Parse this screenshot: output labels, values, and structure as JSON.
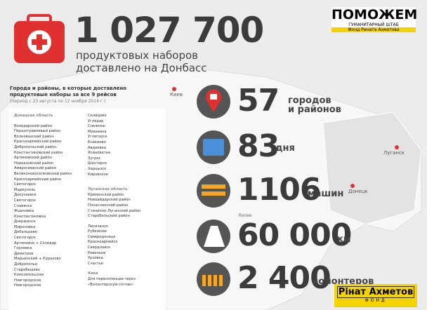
{
  "header": {
    "count": "1 027 700",
    "caption": [
      "продуктовых наборов",
      "доставлено на Донбасс"
    ]
  },
  "logo": {
    "name": "ПОМОЖЕМ",
    "subtitle": "ГУМАНИТАРНЫЙ ШТАБ",
    "fund": "Фонд Рината Ахметова"
  },
  "list": {
    "title": [
      "Города и районы, в которые доставлено",
      "продуктовые наборы за все 9 рейсов"
    ],
    "period": "(период с 23 августа по 12 ноября 2014 г.)",
    "donetsk": {
      "heading": "Донецкая область",
      "items": [
        "Володарский район",
        "Першотравневый район",
        "Волновахский район",
        "Красноармейский район",
        "Добропольский район",
        "Константиновский район",
        "Артемовский район",
        "Новоазовский район",
        "Амвросиевский район",
        "Великоновоселковский район",
        "Красноармейский район",
        "Святогорск",
        "Мариуполь",
        "Докучаевск",
        "Святогорск",
        "Славянск",
        "Ждановка",
        "Константиновка",
        "Дзержинск",
        "Мироновка",
        "Дебальцево",
        "Святогорск",
        "Артемовск + Соледар",
        "Горловка",
        "Димитров",
        "Марьинский + Курахово",
        "Доброполье",
        "Старобешево",
        "Комсомольское",
        "Новгородское",
        "Новгородское"
      ]
    },
    "donetsk_more": [
      "Селидово",
      "Угледар",
      "Снежное",
      "Макеевка",
      "Углегорск",
      "Енакиево",
      "Авдеевка",
      "Ясиноватая",
      "Зугрес",
      "Шахтерск",
      "Харцызск",
      "Кировское"
    ],
    "lugansk": {
      "heading": "Луганская область",
      "districts": [
        "Кременской район",
        "Новоайдарский район",
        "Попаснянский район",
        "Станично-Луганский район",
        "Старобельский район"
      ],
      "cities": [
        "Лисичанск",
        "Рубежное",
        "Северодонецк",
        "Красноармейск",
        "Свердловск",
        "Ровеньки",
        "Урзовка",
        "Счастье"
      ]
    },
    "kiev": {
      "heading": "Киев",
      "items": [
        "Для переселенцев через",
        "«Волонтерскую сотню»"
      ]
    }
  },
  "stats": [
    {
      "value": "57",
      "unit": [
        "городов",
        "и районов"
      ]
    },
    {
      "value": "83",
      "unit": [
        "дня"
      ]
    },
    {
      "value": "1106",
      "unit": [
        "машин"
      ]
    },
    {
      "prefix": "более",
      "value": "60 000",
      "unit": [
        "км"
      ]
    },
    {
      "value": "2 400",
      "unit": [
        "волонтеров"
      ]
    }
  ],
  "map": {
    "labels": [
      "Киев",
      "Луганск",
      "Донецк"
    ]
  },
  "footer_logo": {
    "name": "Рінат Ахметов",
    "fund": "ФОНД"
  }
}
